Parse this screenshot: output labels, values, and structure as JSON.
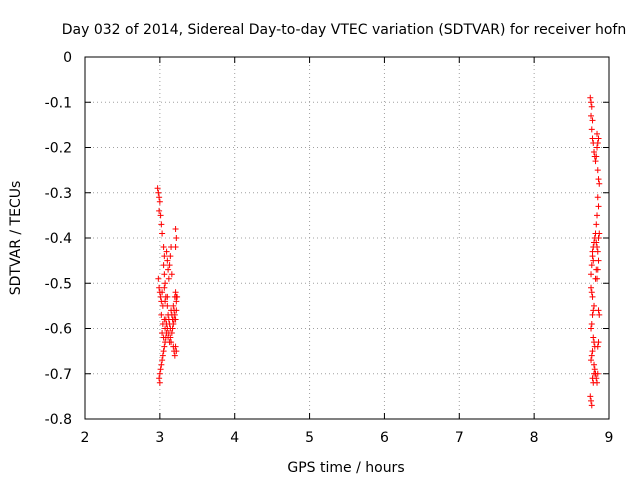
{
  "chart_data": {
    "type": "scatter",
    "title": "Day 032 of 2014, Sidereal Day-to-day VTEC variation (SDTVAR) for receiver hofn",
    "xlabel": "GPS time / hours",
    "ylabel": "SDTVAR / TECUs",
    "xlim": [
      2,
      9
    ],
    "ylim": [
      -0.8,
      0
    ],
    "xticks": [
      2,
      3,
      4,
      5,
      6,
      7,
      8,
      9
    ],
    "yticks": [
      0,
      -0.1,
      -0.2,
      -0.3,
      -0.4,
      -0.5,
      -0.6,
      -0.7,
      -0.8
    ],
    "xtick_labels": [
      "2",
      "3",
      "4",
      "5",
      "6",
      "7",
      "8",
      "9"
    ],
    "ytick_labels": [
      "0",
      "-0.1",
      "-0.2",
      "-0.3",
      "-0.4",
      "-0.5",
      "-0.6",
      "-0.7",
      "-0.8"
    ],
    "grid": true,
    "marker": "plus",
    "series": [
      {
        "name": "SDTVAR",
        "color": "#ff0000",
        "points": [
          [
            2.97,
            -0.29
          ],
          [
            2.98,
            -0.3
          ],
          [
            2.99,
            -0.31
          ],
          [
            3.0,
            -0.32
          ],
          [
            2.99,
            -0.34
          ],
          [
            3.01,
            -0.35
          ],
          [
            3.02,
            -0.37
          ],
          [
            3.03,
            -0.39
          ],
          [
            2.98,
            -0.49
          ],
          [
            2.99,
            -0.51
          ],
          [
            3.0,
            -0.52
          ],
          [
            3.01,
            -0.53
          ],
          [
            3.02,
            -0.54
          ],
          [
            3.03,
            -0.52
          ],
          [
            3.04,
            -0.55
          ],
          [
            3.02,
            -0.57
          ],
          [
            3.05,
            -0.42
          ],
          [
            3.06,
            -0.44
          ],
          [
            3.05,
            -0.46
          ],
          [
            3.06,
            -0.48
          ],
          [
            3.07,
            -0.5
          ],
          [
            3.06,
            -0.51
          ],
          [
            3.08,
            -0.53
          ],
          [
            3.07,
            -0.54
          ],
          [
            3.09,
            -0.43
          ],
          [
            3.1,
            -0.45
          ],
          [
            3.11,
            -0.47
          ],
          [
            3.12,
            -0.49
          ],
          [
            3.13,
            -0.46
          ],
          [
            3.14,
            -0.44
          ],
          [
            3.15,
            -0.42
          ],
          [
            3.16,
            -0.48
          ],
          [
            3.1,
            -0.55
          ],
          [
            3.11,
            -0.57
          ],
          [
            3.12,
            -0.58
          ],
          [
            3.13,
            -0.59
          ],
          [
            3.14,
            -0.6
          ],
          [
            3.15,
            -0.56
          ],
          [
            3.16,
            -0.57
          ],
          [
            3.17,
            -0.58
          ],
          [
            3.18,
            -0.55
          ],
          [
            3.19,
            -0.56
          ],
          [
            3.2,
            -0.57
          ],
          [
            3.21,
            -0.58
          ],
          [
            3.22,
            -0.56
          ],
          [
            3.2,
            -0.53
          ],
          [
            3.21,
            -0.52
          ],
          [
            3.22,
            -0.53
          ],
          [
            3.03,
            -0.67
          ],
          [
            3.02,
            -0.68
          ],
          [
            3.01,
            -0.69
          ],
          [
            3.0,
            -0.7
          ],
          [
            2.99,
            -0.71
          ],
          [
            3.0,
            -0.72
          ],
          [
            3.04,
            -0.66
          ],
          [
            3.05,
            -0.65
          ],
          [
            3.06,
            -0.64
          ],
          [
            3.07,
            -0.63
          ],
          [
            3.08,
            -0.62
          ],
          [
            3.09,
            -0.61
          ],
          [
            3.1,
            -0.6
          ],
          [
            3.11,
            -0.62
          ],
          [
            3.12,
            -0.61
          ],
          [
            3.13,
            -0.63
          ],
          [
            3.18,
            -0.64
          ],
          [
            3.19,
            -0.65
          ],
          [
            3.2,
            -0.66
          ],
          [
            3.21,
            -0.64
          ],
          [
            3.22,
            -0.65
          ],
          [
            3.21,
            -0.42
          ],
          [
            3.22,
            -0.4
          ],
          [
            3.21,
            -0.38
          ],
          [
            3.22,
            -0.54
          ],
          [
            3.23,
            -0.53
          ],
          [
            3.14,
            -0.62
          ],
          [
            3.15,
            -0.63
          ],
          [
            3.16,
            -0.61
          ],
          [
            3.17,
            -0.6
          ],
          [
            3.18,
            -0.59
          ],
          [
            3.19,
            -0.58
          ],
          [
            3.08,
            -0.58
          ],
          [
            3.09,
            -0.59
          ],
          [
            3.07,
            -0.6
          ],
          [
            3.04,
            -0.59
          ],
          [
            3.03,
            -0.61
          ],
          [
            3.05,
            -0.62
          ],
          [
            3.06,
            -0.58
          ],
          [
            3.1,
            -0.53
          ],
          [
            8.75,
            -0.09
          ],
          [
            8.76,
            -0.1
          ],
          [
            8.77,
            -0.11
          ],
          [
            8.76,
            -0.13
          ],
          [
            8.78,
            -0.14
          ],
          [
            8.77,
            -0.16
          ],
          [
            8.78,
            -0.18
          ],
          [
            8.79,
            -0.19
          ],
          [
            8.8,
            -0.21
          ],
          [
            8.81,
            -0.22
          ],
          [
            8.82,
            -0.23
          ],
          [
            8.83,
            -0.22
          ],
          [
            8.84,
            -0.2
          ],
          [
            8.85,
            -0.19
          ],
          [
            8.86,
            -0.18
          ],
          [
            8.84,
            -0.17
          ],
          [
            8.85,
            -0.25
          ],
          [
            8.86,
            -0.27
          ],
          [
            8.87,
            -0.28
          ],
          [
            8.85,
            -0.31
          ],
          [
            8.86,
            -0.33
          ],
          [
            8.84,
            -0.35
          ],
          [
            8.83,
            -0.37
          ],
          [
            8.82,
            -0.39
          ],
          [
            8.81,
            -0.4
          ],
          [
            8.8,
            -0.41
          ],
          [
            8.79,
            -0.42
          ],
          [
            8.78,
            -0.44
          ],
          [
            8.77,
            -0.46
          ],
          [
            8.76,
            -0.48
          ],
          [
            8.79,
            -0.45
          ],
          [
            8.78,
            -0.43
          ],
          [
            8.83,
            -0.41
          ],
          [
            8.84,
            -0.42
          ],
          [
            8.85,
            -0.43
          ],
          [
            8.86,
            -0.4
          ],
          [
            8.87,
            -0.39
          ],
          [
            8.86,
            -0.45
          ],
          [
            8.85,
            -0.47
          ],
          [
            8.84,
            -0.49
          ],
          [
            8.76,
            -0.51
          ],
          [
            8.77,
            -0.52
          ],
          [
            8.78,
            -0.53
          ],
          [
            8.8,
            -0.55
          ],
          [
            8.79,
            -0.56
          ],
          [
            8.78,
            -0.57
          ],
          [
            8.77,
            -0.59
          ],
          [
            8.76,
            -0.6
          ],
          [
            8.79,
            -0.62
          ],
          [
            8.8,
            -0.63
          ],
          [
            8.81,
            -0.64
          ],
          [
            8.78,
            -0.65
          ],
          [
            8.77,
            -0.66
          ],
          [
            8.76,
            -0.67
          ],
          [
            8.86,
            -0.56
          ],
          [
            8.87,
            -0.57
          ],
          [
            8.86,
            -0.63
          ],
          [
            8.85,
            -0.64
          ],
          [
            8.8,
            -0.68
          ],
          [
            8.81,
            -0.69
          ],
          [
            8.82,
            -0.7
          ],
          [
            8.83,
            -0.71
          ],
          [
            8.84,
            -0.72
          ],
          [
            8.85,
            -0.7
          ],
          [
            8.78,
            -0.71
          ],
          [
            8.79,
            -0.72
          ],
          [
            8.8,
            -0.7
          ],
          [
            8.75,
            -0.75
          ],
          [
            8.76,
            -0.76
          ],
          [
            8.77,
            -0.77
          ],
          [
            8.82,
            -0.49
          ],
          [
            8.83,
            -0.47
          ]
        ]
      }
    ]
  }
}
